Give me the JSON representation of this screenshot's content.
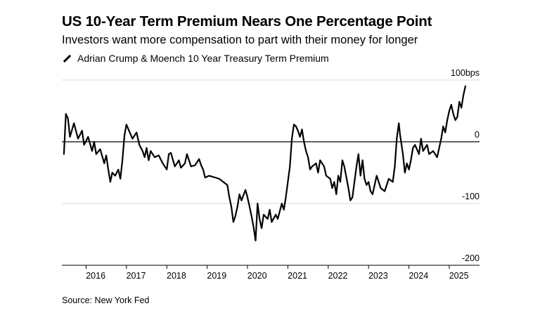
{
  "title": "US 10-Year Term Premium Nears One Percentage Point",
  "subtitle": "Investors want more compensation to part with their money for longer",
  "source": "Source: New York Fed",
  "chart_data": {
    "type": "line",
    "series": [
      {
        "name": "Adrian Crump & Moench 10 Year Treasury Term Premium",
        "color": "#000000",
        "points": [
          [
            2015.45,
            -20
          ],
          [
            2015.5,
            45
          ],
          [
            2015.55,
            38
          ],
          [
            2015.6,
            8
          ],
          [
            2015.7,
            30
          ],
          [
            2015.8,
            5
          ],
          [
            2015.9,
            18
          ],
          [
            2015.95,
            -5
          ],
          [
            2016.05,
            8
          ],
          [
            2016.15,
            -15
          ],
          [
            2016.2,
            0
          ],
          [
            2016.25,
            -20
          ],
          [
            2016.35,
            -12
          ],
          [
            2016.45,
            -35
          ],
          [
            2016.5,
            -22
          ],
          [
            2016.55,
            -45
          ],
          [
            2016.6,
            -65
          ],
          [
            2016.65,
            -50
          ],
          [
            2016.72,
            -55
          ],
          [
            2016.8,
            -45
          ],
          [
            2016.85,
            -60
          ],
          [
            2016.9,
            -30
          ],
          [
            2016.95,
            10
          ],
          [
            2017.0,
            28
          ],
          [
            2017.05,
            20
          ],
          [
            2017.15,
            5
          ],
          [
            2017.25,
            15
          ],
          [
            2017.32,
            -5
          ],
          [
            2017.4,
            -15
          ],
          [
            2017.45,
            -25
          ],
          [
            2017.5,
            -10
          ],
          [
            2017.55,
            -30
          ],
          [
            2017.6,
            -15
          ],
          [
            2017.7,
            -25
          ],
          [
            2017.8,
            -22
          ],
          [
            2017.9,
            -35
          ],
          [
            2018.0,
            -45
          ],
          [
            2018.05,
            -20
          ],
          [
            2018.1,
            -18
          ],
          [
            2018.2,
            -40
          ],
          [
            2018.3,
            -30
          ],
          [
            2018.35,
            -42
          ],
          [
            2018.45,
            -35
          ],
          [
            2018.5,
            -20
          ],
          [
            2018.6,
            -40
          ],
          [
            2018.7,
            -38
          ],
          [
            2018.8,
            -28
          ],
          [
            2018.85,
            -38
          ],
          [
            2018.9,
            -45
          ],
          [
            2018.95,
            -58
          ],
          [
            2019.05,
            -55
          ],
          [
            2019.2,
            -58
          ],
          [
            2019.3,
            -60
          ],
          [
            2019.4,
            -65
          ],
          [
            2019.5,
            -70
          ],
          [
            2019.55,
            -90
          ],
          [
            2019.6,
            -105
          ],
          [
            2019.65,
            -130
          ],
          [
            2019.7,
            -120
          ],
          [
            2019.75,
            -105
          ],
          [
            2019.8,
            -85
          ],
          [
            2019.85,
            -95
          ],
          [
            2019.95,
            -78
          ],
          [
            2020.0,
            -90
          ],
          [
            2020.05,
            -105
          ],
          [
            2020.1,
            -120
          ],
          [
            2020.15,
            -138
          ],
          [
            2020.2,
            -160
          ],
          [
            2020.25,
            -100
          ],
          [
            2020.3,
            -125
          ],
          [
            2020.35,
            -140
          ],
          [
            2020.4,
            -118
          ],
          [
            2020.5,
            -125
          ],
          [
            2020.55,
            -110
          ],
          [
            2020.6,
            -130
          ],
          [
            2020.7,
            -118
          ],
          [
            2020.75,
            -125
          ],
          [
            2020.85,
            -100
          ],
          [
            2020.9,
            -110
          ],
          [
            2020.95,
            -90
          ],
          [
            2021.0,
            -65
          ],
          [
            2021.05,
            -40
          ],
          [
            2021.1,
            5
          ],
          [
            2021.15,
            28
          ],
          [
            2021.2,
            25
          ],
          [
            2021.25,
            18
          ],
          [
            2021.3,
            8
          ],
          [
            2021.35,
            20
          ],
          [
            2021.4,
            0
          ],
          [
            2021.45,
            -15
          ],
          [
            2021.5,
            -25
          ],
          [
            2021.55,
            -45
          ],
          [
            2021.6,
            -40
          ],
          [
            2021.7,
            -35
          ],
          [
            2021.75,
            -50
          ],
          [
            2021.8,
            -30
          ],
          [
            2021.9,
            -40
          ],
          [
            2021.95,
            -55
          ],
          [
            2022.05,
            -60
          ],
          [
            2022.1,
            -75
          ],
          [
            2022.15,
            -65
          ],
          [
            2022.2,
            -85
          ],
          [
            2022.25,
            -55
          ],
          [
            2022.3,
            -65
          ],
          [
            2022.35,
            -30
          ],
          [
            2022.4,
            -40
          ],
          [
            2022.5,
            -75
          ],
          [
            2022.55,
            -95
          ],
          [
            2022.6,
            -90
          ],
          [
            2022.7,
            -40
          ],
          [
            2022.75,
            -20
          ],
          [
            2022.8,
            -55
          ],
          [
            2022.85,
            -30
          ],
          [
            2022.9,
            -60
          ],
          [
            2022.95,
            -70
          ],
          [
            2023.0,
            -65
          ],
          [
            2023.05,
            -80
          ],
          [
            2023.1,
            -85
          ],
          [
            2023.15,
            -70
          ],
          [
            2023.2,
            -55
          ],
          [
            2023.3,
            -75
          ],
          [
            2023.4,
            -80
          ],
          [
            2023.45,
            -70
          ],
          [
            2023.5,
            -60
          ],
          [
            2023.6,
            -65
          ],
          [
            2023.65,
            -40
          ],
          [
            2023.7,
            5
          ],
          [
            2023.75,
            30
          ],
          [
            2023.78,
            12
          ],
          [
            2023.85,
            -20
          ],
          [
            2023.9,
            -50
          ],
          [
            2023.95,
            -35
          ],
          [
            2024.0,
            -45
          ],
          [
            2024.05,
            -30
          ],
          [
            2024.1,
            -10
          ],
          [
            2024.15,
            -5
          ],
          [
            2024.25,
            -20
          ],
          [
            2024.3,
            5
          ],
          [
            2024.35,
            -15
          ],
          [
            2024.45,
            -5
          ],
          [
            2024.5,
            -20
          ],
          [
            2024.6,
            -15
          ],
          [
            2024.7,
            -25
          ],
          [
            2024.75,
            -10
          ],
          [
            2024.8,
            5
          ],
          [
            2024.85,
            25
          ],
          [
            2024.9,
            15
          ],
          [
            2024.95,
            35
          ],
          [
            2025.0,
            50
          ],
          [
            2025.05,
            60
          ],
          [
            2025.1,
            45
          ],
          [
            2025.15,
            35
          ],
          [
            2025.2,
            40
          ],
          [
            2025.25,
            65
          ],
          [
            2025.3,
            55
          ],
          [
            2025.35,
            75
          ],
          [
            2025.4,
            90
          ]
        ]
      }
    ],
    "x_ticks": [
      "2016",
      "2017",
      "2018",
      "2019",
      "2020",
      "2021",
      "2022",
      "2023",
      "2024",
      "2025"
    ],
    "y_ticks": [
      {
        "value": 100,
        "label": "100bps"
      },
      {
        "value": 0,
        "label": "0"
      },
      {
        "value": -100,
        "label": "-100"
      },
      {
        "value": -200,
        "label": "-200"
      }
    ],
    "xlim": [
      2015.4,
      2025.75
    ],
    "ylim": [
      -200,
      100
    ],
    "grid": "horizontal",
    "legend": "top-left"
  }
}
